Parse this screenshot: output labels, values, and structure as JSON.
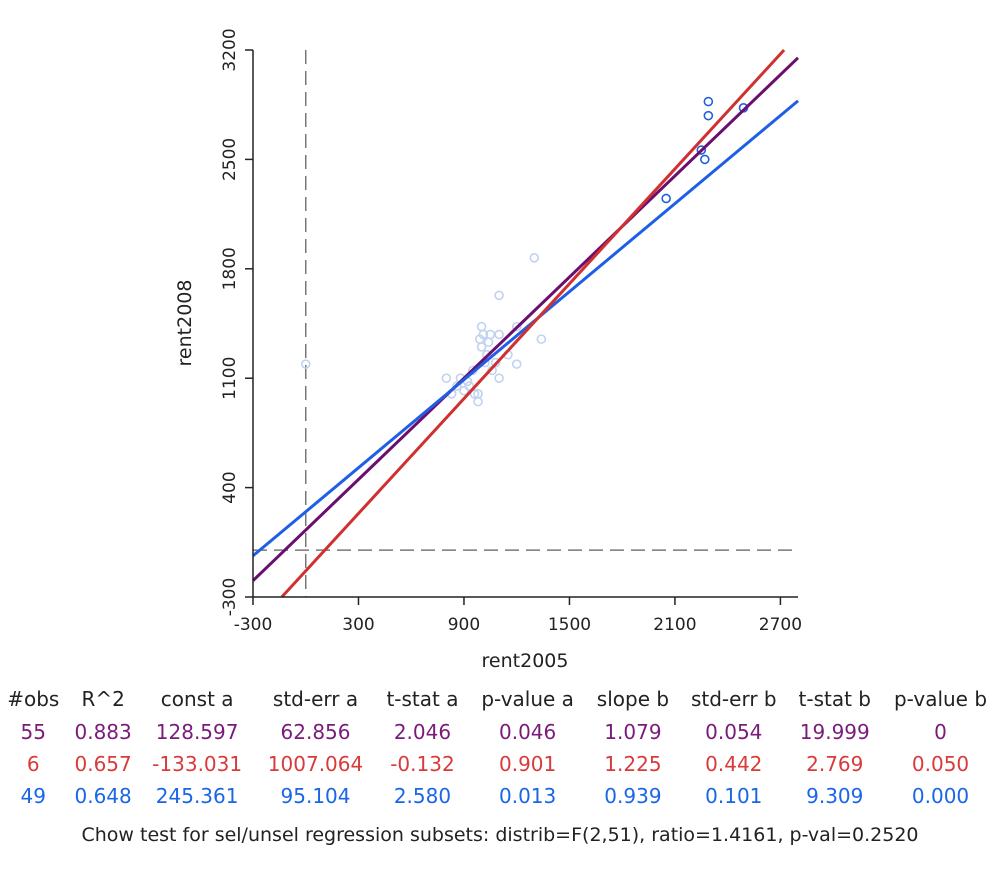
{
  "chart_data": {
    "type": "scatter",
    "xlabel": "rent2005",
    "ylabel": "rent2008",
    "xlim": [
      -300,
      2800
    ],
    "ylim": [
      -300,
      3200
    ],
    "x_ticks": [
      -300,
      300,
      900,
      1500,
      2100,
      2700
    ],
    "y_ticks": [
      -300,
      400,
      1100,
      1800,
      2500,
      3200
    ],
    "grid": false,
    "reference_lines": {
      "vertical_x": 0,
      "horizontal_y": 0,
      "style": "dashed"
    },
    "points": [
      {
        "x": 0,
        "y": 1190,
        "group": "unselected"
      },
      {
        "x": 800,
        "y": 1100,
        "group": "unselected"
      },
      {
        "x": 830,
        "y": 1000,
        "group": "unselected"
      },
      {
        "x": 860,
        "y": 1050,
        "group": "unselected"
      },
      {
        "x": 880,
        "y": 1100,
        "group": "unselected"
      },
      {
        "x": 900,
        "y": 1020,
        "group": "unselected"
      },
      {
        "x": 920,
        "y": 1080,
        "group": "unselected"
      },
      {
        "x": 930,
        "y": 1050,
        "group": "unselected"
      },
      {
        "x": 950,
        "y": 1150,
        "group": "unselected"
      },
      {
        "x": 960,
        "y": 1000,
        "group": "unselected"
      },
      {
        "x": 980,
        "y": 1000,
        "group": "unselected"
      },
      {
        "x": 980,
        "y": 950,
        "group": "unselected"
      },
      {
        "x": 990,
        "y": 1350,
        "group": "unselected"
      },
      {
        "x": 1000,
        "y": 1430,
        "group": "unselected"
      },
      {
        "x": 1000,
        "y": 1300,
        "group": "unselected"
      },
      {
        "x": 1010,
        "y": 1380,
        "group": "unselected"
      },
      {
        "x": 1020,
        "y": 1200,
        "group": "unselected"
      },
      {
        "x": 1030,
        "y": 1250,
        "group": "unselected"
      },
      {
        "x": 1040,
        "y": 1330,
        "group": "unselected"
      },
      {
        "x": 1050,
        "y": 1380,
        "group": "unselected"
      },
      {
        "x": 1060,
        "y": 1150,
        "group": "unselected"
      },
      {
        "x": 1080,
        "y": 1200,
        "group": "unselected"
      },
      {
        "x": 1100,
        "y": 1380,
        "group": "unselected"
      },
      {
        "x": 1100,
        "y": 1100,
        "group": "unselected"
      },
      {
        "x": 1100,
        "y": 1630,
        "group": "unselected"
      },
      {
        "x": 1150,
        "y": 1250,
        "group": "unselected"
      },
      {
        "x": 1200,
        "y": 1190,
        "group": "unselected"
      },
      {
        "x": 1200,
        "y": 1430,
        "group": "unselected"
      },
      {
        "x": 1300,
        "y": 1870,
        "group": "unselected"
      },
      {
        "x": 1340,
        "y": 1350,
        "group": "unselected"
      },
      {
        "x": 2050,
        "y": 2250,
        "group": "selected"
      },
      {
        "x": 2250,
        "y": 2560,
        "group": "selected"
      },
      {
        "x": 2270,
        "y": 2500,
        "group": "selected"
      },
      {
        "x": 2290,
        "y": 2780,
        "group": "selected"
      },
      {
        "x": 2290,
        "y": 2870,
        "group": "selected"
      },
      {
        "x": 2490,
        "y": 2830,
        "group": "selected"
      }
    ],
    "lines": [
      {
        "color": "#6a0f6f",
        "intercept": 128.597,
        "slope": 1.079
      },
      {
        "color": "#1f5fe6",
        "intercept": 245.361,
        "slope": 0.939
      },
      {
        "color": "#d03030",
        "intercept": -133.031,
        "slope": 1.225
      }
    ]
  },
  "stats_table": {
    "headers": [
      "#obs",
      "R^2",
      "const a",
      "std-err a",
      "t-stat a",
      "p-value a",
      "slope b",
      "std-err b",
      "t-stat b",
      "p-value b"
    ],
    "rows": [
      {
        "color": "#7a1a7a",
        "cells": [
          "55",
          "0.883",
          "128.597",
          "62.856",
          "2.046",
          "0.046",
          "1.079",
          "0.054",
          "19.999",
          "0"
        ]
      },
      {
        "color": "#d93a3a",
        "cells": [
          "6",
          "0.657",
          "-133.031",
          "1007.064",
          "-0.132",
          "0.901",
          "1.225",
          "0.442",
          "2.769",
          "0.050"
        ]
      },
      {
        "color": "#1a66e6",
        "cells": [
          "49",
          "0.648",
          "245.361",
          "95.104",
          "2.580",
          "0.013",
          "0.939",
          "0.101",
          "9.309",
          "0.000"
        ]
      }
    ]
  },
  "chow_text": "Chow test for sel/unsel regression subsets: distrib=F(2,51), ratio=1.4161, p-val=0.2520",
  "colors": {
    "selected_point": "#2060e0",
    "unselected_point": "#c0d2f0",
    "reference_line": "#777777"
  }
}
